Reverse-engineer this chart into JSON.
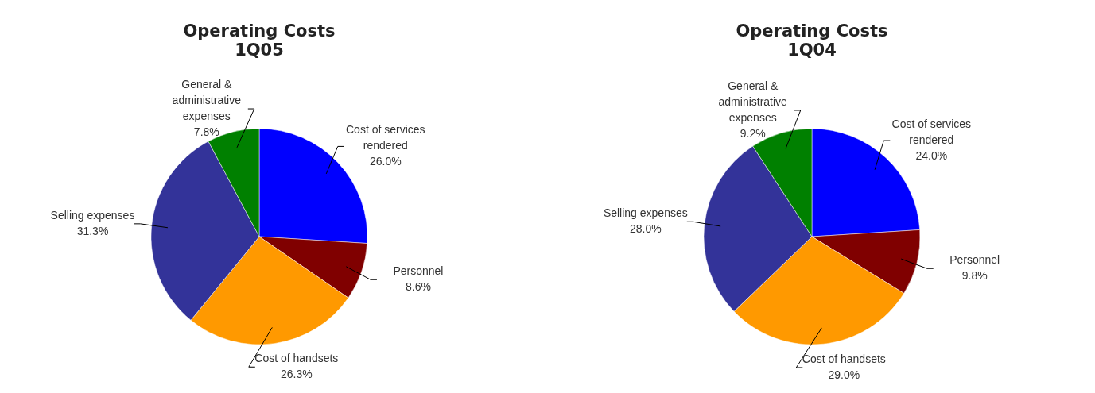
{
  "chart_data": [
    {
      "type": "pie",
      "title": "Operating Costs",
      "subtitle": "1Q05",
      "categories": [
        "Cost of services rendered",
        "Personnel",
        "Cost of handsets",
        "Selling expenses",
        "General & administrative expenses"
      ],
      "values": [
        26.0,
        8.6,
        26.3,
        31.3,
        7.8
      ],
      "value_labels": [
        "26.0%",
        "8.6%",
        "26.3%",
        "31.3%",
        "7.8%"
      ],
      "colors": [
        "#0000ff",
        "#800000",
        "#ff9900",
        "#333399",
        "#008000"
      ],
      "legend": false
    },
    {
      "type": "pie",
      "title": "Operating Costs",
      "subtitle": "1Q04",
      "categories": [
        "Cost of services rendered",
        "Personnel",
        "Cost of handsets",
        "Selling expenses",
        "General & administrative expenses"
      ],
      "values": [
        24.0,
        9.8,
        29.0,
        28.0,
        9.2
      ],
      "value_labels": [
        "24.0%",
        "9.8%",
        "29.0%",
        "28.0%",
        "9.2%"
      ],
      "colors": [
        "#0000ff",
        "#800000",
        "#ff9900",
        "#333399",
        "#008000"
      ],
      "legend": false
    }
  ]
}
